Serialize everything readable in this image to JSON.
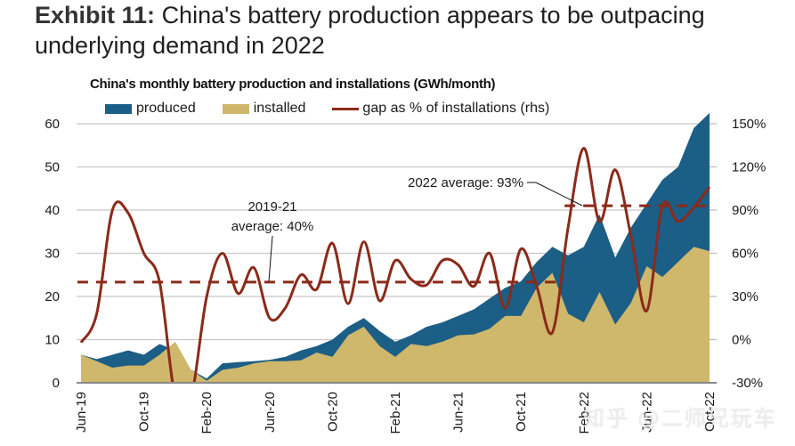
{
  "exhibit": {
    "label": "Exhibit 11:",
    "title": "China's battery production appears to be outpacing underlying demand in 2022"
  },
  "chart_data": {
    "type": "area",
    "title": "China's monthly battery production and installations (GWh/month)",
    "xlabel": "",
    "ylabel": "GWh/month",
    "y2label": "gap as % of installations (rhs)",
    "ylim": [
      0,
      60
    ],
    "y2lim": [
      -30,
      150
    ],
    "yticks": [
      0,
      10,
      20,
      30,
      40,
      50,
      60
    ],
    "y2ticks": [
      "-30%",
      "0%",
      "30%",
      "60%",
      "90%",
      "120%",
      "150%"
    ],
    "y2tick_values": [
      -30,
      0,
      30,
      60,
      90,
      120,
      150
    ],
    "grid": true,
    "legend_position": "top",
    "x": [
      "Jun-19",
      "Jul-19",
      "Aug-19",
      "Sep-19",
      "Oct-19",
      "Nov-19",
      "Dec-19",
      "Jan-20",
      "Feb-20",
      "Mar-20",
      "Apr-20",
      "May-20",
      "Jun-20",
      "Jul-20",
      "Aug-20",
      "Sep-20",
      "Oct-20",
      "Nov-20",
      "Dec-20",
      "Jan-21",
      "Feb-21",
      "Mar-21",
      "Apr-21",
      "May-21",
      "Jun-21",
      "Jul-21",
      "Aug-21",
      "Sep-21",
      "Oct-21",
      "Nov-21",
      "Dec-21",
      "Jan-22",
      "Feb-22",
      "Mar-22",
      "Apr-22",
      "May-22",
      "Jun-22",
      "Jul-22",
      "Aug-22",
      "Sep-22",
      "Oct-22"
    ],
    "xtick_labels": [
      "Jun-19",
      "Oct-19",
      "Feb-20",
      "Jun-20",
      "Oct-20",
      "Feb-21",
      "Jun-21",
      "Oct-21",
      "Feb-22",
      "Jun-22",
      "Oct-22"
    ],
    "series": [
      {
        "name": "produced",
        "type": "area",
        "axis": "left",
        "color": "#1b5e86",
        "values": [
          6.5,
          5.5,
          6.5,
          7.5,
          6.5,
          9.0,
          7.5,
          3.0,
          1.0,
          4.5,
          4.8,
          5.0,
          5.3,
          6.0,
          7.5,
          8.5,
          10.0,
          13.0,
          15.0,
          12.0,
          9.5,
          11.0,
          13.0,
          14.0,
          15.5,
          17.0,
          19.5,
          22.0,
          23.5,
          28.0,
          31.5,
          29.5,
          31.5,
          39.0,
          29.0,
          36.0,
          41.5,
          47.0,
          50.0,
          59.0,
          62.5
        ]
      },
      {
        "name": "installed",
        "type": "area",
        "axis": "left",
        "color": "#cfb76b",
        "values": [
          6.5,
          5.0,
          3.5,
          4.0,
          4.0,
          6.5,
          9.5,
          3.0,
          0.5,
          3.0,
          3.5,
          4.5,
          5.0,
          5.0,
          5.2,
          7.0,
          6.0,
          11.0,
          13.0,
          8.5,
          6.0,
          9.0,
          8.5,
          9.5,
          11.0,
          11.2,
          12.5,
          15.5,
          15.5,
          22.0,
          25.5,
          16.0,
          14.0,
          21.0,
          13.5,
          18.5,
          27.0,
          24.5,
          28.0,
          31.5,
          30.5
        ]
      },
      {
        "name": "gap as % of installations (rhs)",
        "type": "line",
        "axis": "right",
        "color": "#8b2a1a",
        "values": [
          -2,
          18,
          90,
          88,
          60,
          40,
          -40,
          -40,
          30,
          60,
          32,
          50,
          15,
          22,
          45,
          35,
          67,
          25,
          68,
          27,
          55,
          42,
          38,
          55,
          52,
          37,
          60,
          22,
          63,
          37,
          5,
          78,
          133,
          82,
          118,
          72,
          20,
          93,
          82,
          92,
          106
        ]
      },
      {
        "name": "2019-21 average",
        "type": "hline",
        "axis": "right",
        "color": "#8b2a1a",
        "value": 40,
        "x_range": [
          "Jun-19",
          "Dec-21"
        ]
      },
      {
        "name": "2022 average",
        "type": "hline",
        "axis": "right",
        "color": "#8b2a1a",
        "value": 93,
        "x_range": [
          "Jan-22",
          "Oct-22"
        ]
      }
    ],
    "annotations": [
      {
        "text_lines": [
          "2019-21",
          "average: 40%"
        ],
        "target": "2019-21 average"
      },
      {
        "text_lines": [
          "2022 average: 93%"
        ],
        "target": "2022 average"
      }
    ]
  },
  "legend": [
    {
      "label": "produced",
      "kind": "area",
      "color": "#1b5e86"
    },
    {
      "label": "installed",
      "kind": "area",
      "color": "#cfb76b"
    },
    {
      "label": "gap as % of installations (rhs)",
      "kind": "line",
      "color": "#8b2a1a"
    }
  ],
  "watermark": "知乎 @二师兄玩车"
}
